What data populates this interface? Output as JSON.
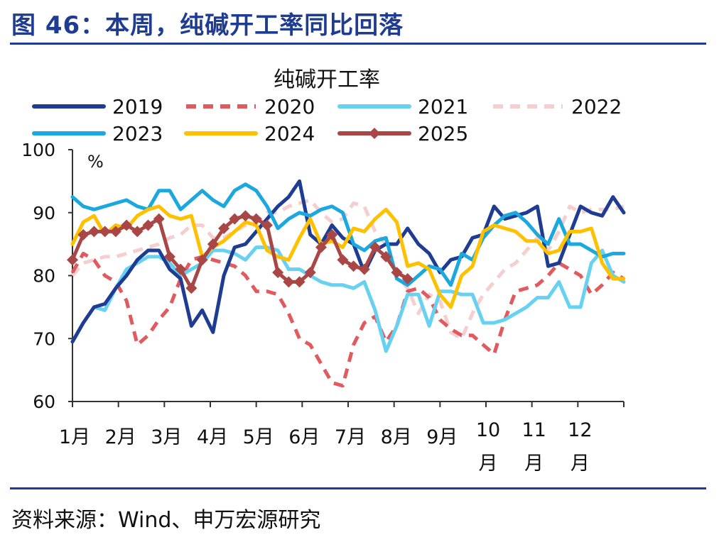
{
  "header": {
    "title": "图 46：本周，纯碱开工率同比回落"
  },
  "footer": {
    "source": "资料来源：Wind、申万宏源研究"
  },
  "chart_data": {
    "type": "line",
    "title": "纯碱开工率",
    "ylabel": "%",
    "ylim": [
      60,
      100
    ],
    "yticks": [
      60,
      70,
      80,
      90,
      100
    ],
    "xlim": [
      1,
      52
    ],
    "x_unit": "week",
    "month_labels": [
      "1月",
      "2月",
      "3月",
      "4月",
      "5月",
      "6月",
      "7月",
      "8月",
      "9月",
      "10月",
      "11月",
      "12月"
    ],
    "legend_position": "top",
    "grid": false,
    "series": [
      {
        "name": "2019",
        "color": "#1F3C93",
        "dash": "solid",
        "marker": "none",
        "x": [
          1,
          2,
          3,
          4,
          5,
          6,
          7,
          8,
          9,
          10,
          11,
          12,
          13,
          14,
          15,
          16,
          17,
          18,
          19,
          20,
          21,
          22,
          23,
          24,
          25,
          26,
          27,
          28,
          29,
          30,
          31,
          32,
          33,
          34,
          35,
          36,
          37,
          38,
          39,
          40,
          41,
          42,
          43,
          44,
          45,
          46,
          47,
          48,
          49,
          50,
          51,
          52
        ],
        "values": [
          69.5,
          72.5,
          75,
          75.5,
          78,
          80,
          82.5,
          84,
          84,
          81,
          79.5,
          72,
          74.5,
          71,
          80,
          84.5,
          85,
          87,
          89,
          91,
          92.5,
          95,
          86.5,
          85,
          88,
          86,
          85,
          80.5,
          84,
          85,
          85,
          87.5,
          85,
          83.5,
          80.5,
          82.5,
          83,
          86,
          86.5,
          91,
          89,
          89.5,
          90,
          91,
          81.5,
          82,
          86.5,
          91,
          90,
          89.5,
          92.5,
          90
        ]
      },
      {
        "name": "2020",
        "color": "#E05A5E",
        "dash": "dashed",
        "marker": "none",
        "x": [
          1,
          2,
          3,
          4,
          5,
          6,
          7,
          8,
          9,
          10,
          11,
          12,
          13,
          14,
          15,
          16,
          17,
          18,
          19,
          20,
          21,
          22,
          23,
          24,
          25,
          26,
          27,
          28,
          29,
          30,
          31,
          32,
          33,
          34,
          35,
          36,
          37,
          38,
          39,
          40,
          41,
          42,
          43,
          44,
          45,
          46,
          47,
          48,
          49,
          50,
          51,
          52
        ],
        "values": [
          80.5,
          83.5,
          82.5,
          80,
          79,
          76,
          69,
          70.5,
          73,
          75,
          79.5,
          82.5,
          83,
          82.5,
          82,
          81.5,
          80,
          77.5,
          77.5,
          77,
          74,
          70,
          69,
          66,
          63,
          62.5,
          69,
          72.5,
          73.5,
          69.5,
          72,
          77.5,
          78,
          76.5,
          73,
          71.5,
          70.5,
          70.5,
          69,
          67.5,
          73,
          77.5,
          78,
          78.5,
          80,
          82,
          81,
          80,
          77,
          78.5,
          80.5,
          79.5
        ]
      },
      {
        "name": "2021",
        "color": "#66D1F0",
        "dash": "solid",
        "marker": "none",
        "x": [
          1,
          2,
          3,
          4,
          5,
          6,
          7,
          8,
          9,
          10,
          11,
          12,
          13,
          14,
          15,
          16,
          17,
          18,
          19,
          20,
          21,
          22,
          23,
          24,
          25,
          26,
          27,
          28,
          29,
          30,
          31,
          32,
          33,
          34,
          35,
          36,
          37,
          38,
          39,
          40,
          41,
          42,
          43,
          44,
          45,
          46,
          47,
          48,
          49,
          50,
          51,
          52
        ],
        "values": [
          69.5,
          72.5,
          75,
          74.5,
          78,
          81,
          82,
          83,
          83,
          82,
          80,
          81,
          82,
          84,
          84,
          83.5,
          82.5,
          84.5,
          84.5,
          84,
          81,
          81,
          80,
          79,
          78.5,
          78.5,
          78,
          79,
          74.5,
          68,
          72,
          77,
          77,
          72,
          77.5,
          77.5,
          77,
          77,
          72.5,
          72.5,
          73,
          74,
          75,
          76.5,
          76.5,
          79,
          75,
          75,
          82,
          84,
          80,
          79
        ]
      },
      {
        "name": "2022",
        "color": "#F5CECF",
        "dash": "dashed",
        "marker": "none",
        "x": [
          1,
          2,
          3,
          4,
          5,
          6,
          7,
          8,
          9,
          10,
          11,
          12,
          13,
          14,
          15,
          16,
          17,
          18,
          19,
          20,
          21,
          22,
          23,
          24,
          25,
          26,
          27,
          28,
          29,
          30,
          31,
          32,
          33,
          34,
          35,
          36,
          37,
          38,
          39,
          40,
          41,
          42,
          43,
          44,
          45,
          46,
          47,
          48,
          49,
          50,
          51,
          52
        ],
        "values": [
          80,
          82,
          82.5,
          83,
          83,
          83.5,
          84,
          84.5,
          85,
          86,
          86.5,
          88,
          88,
          86,
          86,
          87,
          88,
          88.5,
          90,
          90,
          91,
          91.5,
          92,
          90,
          88.5,
          89,
          91.5,
          91,
          87,
          85,
          80,
          78,
          74,
          77,
          76,
          71,
          70,
          74,
          77,
          79,
          81,
          82,
          84,
          86,
          84,
          87,
          91,
          90,
          90.5,
          90.5,
          90.5,
          91
        ]
      },
      {
        "name": "2023",
        "color": "#1BA8DE",
        "dash": "solid",
        "marker": "none",
        "x": [
          1,
          2,
          3,
          4,
          5,
          6,
          7,
          8,
          9,
          10,
          11,
          12,
          13,
          14,
          15,
          16,
          17,
          18,
          19,
          20,
          21,
          22,
          23,
          24,
          25,
          26,
          27,
          28,
          29,
          30,
          31,
          32,
          33,
          34,
          35,
          36,
          37,
          38,
          39,
          40,
          41,
          42,
          43,
          44,
          45,
          46,
          47,
          48,
          49,
          50,
          51,
          52
        ],
        "values": [
          92.5,
          91,
          90.5,
          91,
          91.5,
          92,
          91,
          90.5,
          93.5,
          93.5,
          90.5,
          92,
          93.5,
          92,
          91,
          93.5,
          94.5,
          93.5,
          91,
          87.5,
          89,
          90,
          89.5,
          90.5,
          91,
          90,
          85,
          84,
          85.5,
          86,
          79.5,
          78.5,
          80,
          81.5,
          81,
          78.5,
          83.5,
          82.5,
          86,
          88,
          89.5,
          90,
          88.5,
          86.5,
          85,
          89,
          85,
          85,
          84,
          83,
          83.5,
          83.5
        ]
      },
      {
        "name": "2024",
        "color": "#FFC000",
        "dash": "solid",
        "marker": "none",
        "x": [
          1,
          2,
          3,
          4,
          5,
          6,
          7,
          8,
          9,
          10,
          11,
          12,
          13,
          14,
          15,
          16,
          17,
          18,
          19,
          20,
          21,
          22,
          23,
          24,
          25,
          26,
          27,
          28,
          29,
          30,
          31,
          32,
          33,
          34,
          35,
          36,
          37,
          38,
          39,
          40,
          41,
          42,
          43,
          44,
          45,
          46,
          47,
          48,
          49,
          50,
          51,
          52
        ],
        "values": [
          85,
          88.5,
          89.5,
          86.5,
          88,
          87.5,
          89.5,
          90.5,
          91,
          89.5,
          89,
          89.5,
          83,
          84.5,
          85.5,
          87,
          88.5,
          88,
          84,
          83,
          82.5,
          86,
          89,
          85,
          85.5,
          84.5,
          87.5,
          87,
          89,
          90.5,
          88.5,
          81.5,
          82,
          81,
          77,
          75,
          80,
          81.5,
          87,
          88,
          87.5,
          87,
          85.5,
          85.5,
          83.5,
          84,
          87,
          87,
          87.5,
          82,
          79.5,
          79.5
        ]
      },
      {
        "name": "2025",
        "color": "#A94646",
        "dash": "solid",
        "marker": "diamond",
        "x": [
          1,
          2,
          3,
          4,
          5,
          6,
          7,
          8,
          9,
          10,
          11,
          12,
          13,
          14,
          15,
          16,
          17,
          18,
          19,
          20,
          21,
          22,
          23,
          24,
          25,
          26,
          27,
          28,
          29,
          30,
          31,
          32
        ],
        "values": [
          82.5,
          86.5,
          87,
          87,
          87,
          88,
          87,
          88,
          89,
          83,
          81,
          78,
          82.5,
          85,
          87.5,
          89,
          89.5,
          89,
          88,
          80.5,
          79,
          79,
          80.5,
          84.5,
          86.5,
          82.5,
          81.5,
          81,
          84.5,
          83,
          80.5,
          79.5
        ]
      }
    ]
  }
}
